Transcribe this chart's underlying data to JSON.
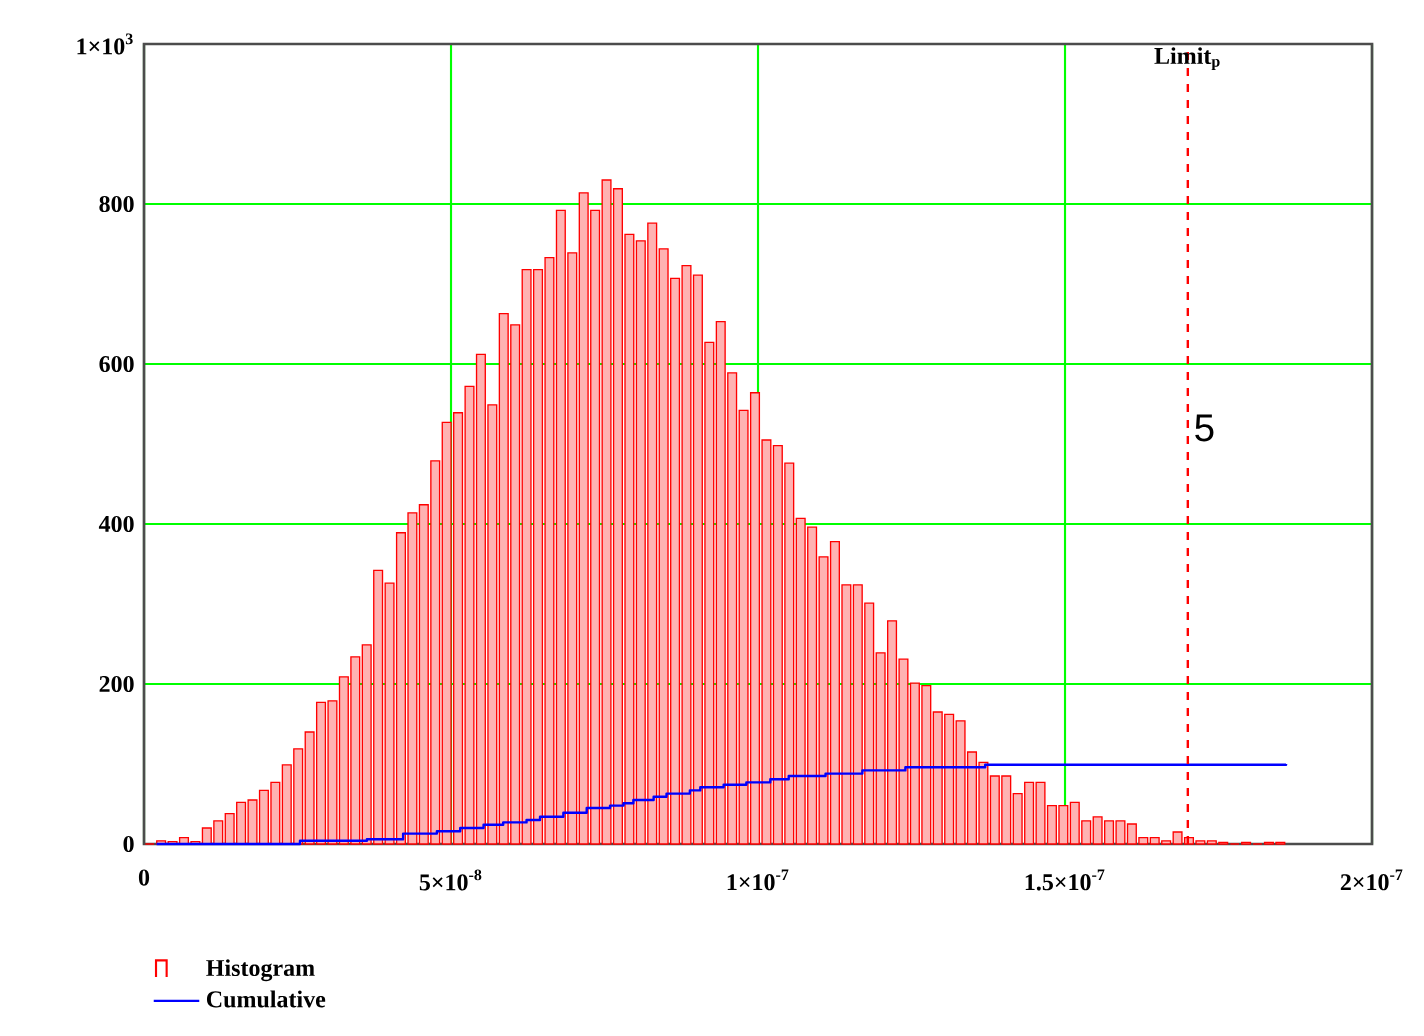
{
  "chart_data": {
    "type": "histogram",
    "bins": [
      0,
      1.86e-09,
      3.72e-09,
      5.58e-09,
      7.44e-09,
      9.3e-09,
      1.116e-08,
      1.302e-08,
      1.488e-08,
      1.674e-08,
      1.86e-08,
      2.046e-08,
      2.232e-08,
      2.418e-08,
      2.604e-08,
      2.79e-08,
      2.976e-08,
      3.162e-08,
      3.348e-08,
      3.534e-08,
      3.72e-08,
      3.906e-08,
      4.092e-08,
      4.278e-08,
      4.464e-08,
      4.65e-08,
      4.836e-08,
      5.022e-08,
      5.208e-08,
      5.394e-08,
      5.58e-08,
      5.766e-08,
      5.952e-08,
      6.138e-08,
      6.324e-08,
      6.51e-08,
      6.696e-08,
      6.882e-08,
      7.068e-08,
      7.254e-08,
      7.44e-08,
      7.626e-08,
      7.812e-08,
      7.998e-08,
      8.184e-08,
      8.37e-08,
      8.556e-08,
      8.742e-08,
      8.928e-08,
      9.114e-08,
      9.3e-08,
      9.486e-08,
      9.672e-08,
      9.858e-08,
      1.0044e-07,
      1.023e-07,
      1.0416e-07,
      1.0602e-07,
      1.0788e-07,
      1.0974e-07,
      1.116e-07,
      1.1346e-07,
      1.1532e-07,
      1.1718e-07,
      1.1904e-07,
      1.209e-07,
      1.2276e-07,
      1.2462e-07,
      1.2648e-07,
      1.2834e-07,
      1.302e-07,
      1.3206e-07,
      1.3392e-07,
      1.3578e-07,
      1.3764e-07,
      1.395e-07,
      1.4136e-07,
      1.4322e-07,
      1.4508e-07,
      1.4694e-07,
      1.488e-07,
      1.5066e-07,
      1.5252e-07,
      1.5438e-07,
      1.5624e-07,
      1.581e-07,
      1.5996e-07,
      1.6182e-07,
      1.6368e-07,
      1.6554e-07,
      1.674e-07,
      1.6926e-07,
      1.7112e-07,
      1.7298e-07,
      1.7484e-07,
      1.767e-07,
      1.7856e-07,
      1.8042e-07,
      1.8228e-07,
      1.8414e-07,
      1.86e-07
    ],
    "series": [
      {
        "name": "Histogram",
        "color": "#ff0000",
        "values": [
          0,
          4,
          3,
          8,
          3,
          20,
          29,
          38,
          52,
          55,
          67,
          77,
          99,
          119,
          140,
          177,
          179,
          209,
          234,
          249,
          342,
          326,
          389,
          414,
          424,
          479,
          527,
          539,
          572,
          612,
          549,
          663,
          649,
          718,
          718,
          733,
          792,
          739,
          814,
          792,
          830,
          819,
          762,
          754,
          776,
          744,
          707,
          723,
          711,
          627,
          653,
          589,
          542,
          564,
          505,
          498,
          476,
          407,
          396,
          359,
          378,
          324,
          324,
          301,
          239,
          279,
          231,
          201,
          198,
          165,
          162,
          154,
          115,
          102,
          85,
          85,
          63,
          77,
          77,
          48,
          48,
          52,
          29,
          34,
          29,
          29,
          25,
          8,
          8,
          4,
          15,
          8,
          4,
          4,
          2,
          0,
          2,
          0,
          2,
          2
        ]
      },
      {
        "name": "Cumulative",
        "type": "step",
        "color": "#0000ff",
        "x": [
          2.05e-09,
          2.54e-08,
          3.63e-08,
          4.22e-08,
          4.77e-08,
          5.15e-08,
          5.53e-08,
          5.85e-08,
          6.23e-08,
          6.45e-08,
          6.83e-08,
          7.21e-08,
          7.59e-08,
          7.81e-08,
          7.97e-08,
          8.3e-08,
          8.51e-08,
          8.89e-08,
          9.06e-08,
          9.44e-08,
          9.81e-08,
          1.02e-07,
          1.05e-07,
          1.11e-07,
          1.17e-07,
          1.24e-07,
          1.37e-07,
          1.86e-07
        ],
        "values": [
          0,
          4,
          6,
          13,
          16,
          20,
          24,
          27,
          30,
          34,
          39,
          45,
          48,
          51,
          55,
          59,
          63,
          67,
          71,
          74,
          77,
          81,
          85,
          88,
          92,
          96,
          99,
          100
        ]
      }
    ],
    "xlim": [
      0,
      2e-07
    ],
    "xticks": [
      0,
      {
        "value": 5e-08,
        "label": "5×10$^{-8}$"
      },
      {
        "value": 1e-07,
        "label": "1×10$^{-7}$"
      },
      {
        "value": 1.5e-07,
        "label": "1.5×10$^{-7}$"
      },
      {
        "value": 2e-07,
        "label": "2×10$^{-7}$"
      }
    ],
    "ylim": [
      0,
      1000
    ],
    "yticks": [
      0,
      200,
      400,
      600,
      800,
      {
        "value": 1000,
        "label": "1×10$^{3}$"
      }
    ],
    "ref_lines": [
      {
        "axis": "x",
        "value": 1.7e-07,
        "label": "Limit$_{p}$",
        "color": "#ff0000",
        "line_style": "dashed"
      }
    ],
    "annotations": [
      "5"
    ],
    "grid": true,
    "legend": "bottom left"
  }
}
